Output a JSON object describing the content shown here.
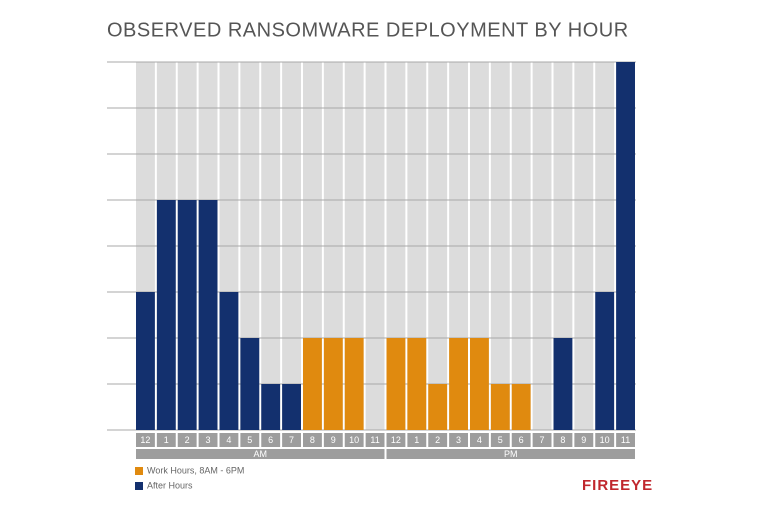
{
  "chart_data": {
    "type": "bar",
    "title": "OBSERVED RANSOMWARE DEPLOYMENT BY HOUR",
    "categories": [
      "12",
      "1",
      "2",
      "3",
      "4",
      "5",
      "6",
      "7",
      "8",
      "9",
      "10",
      "11",
      "12",
      "1",
      "2",
      "3",
      "4",
      "5",
      "6",
      "7",
      "8",
      "9",
      "10",
      "11"
    ],
    "groups": [
      "AM",
      "PM"
    ],
    "series": [
      {
        "name": "Work Hours, 8AM - 6PM",
        "color": "#e08a0f",
        "values": [
          null,
          null,
          null,
          null,
          null,
          null,
          null,
          null,
          2,
          2,
          2,
          null,
          2,
          2,
          1,
          2,
          2,
          1,
          1,
          null,
          null,
          null,
          null,
          null
        ]
      },
      {
        "name": "After Hours",
        "color": "#13306e",
        "values": [
          3,
          5,
          5,
          5,
          3,
          2,
          1,
          1,
          null,
          null,
          null,
          0,
          null,
          null,
          null,
          null,
          null,
          null,
          null,
          0,
          2,
          0,
          3,
          8
        ]
      }
    ],
    "ylim": [
      0,
      8
    ],
    "yticks": [
      0,
      1,
      2,
      3,
      4,
      5,
      6,
      7,
      8
    ],
    "grid": true,
    "logo": "FIREEYE"
  }
}
